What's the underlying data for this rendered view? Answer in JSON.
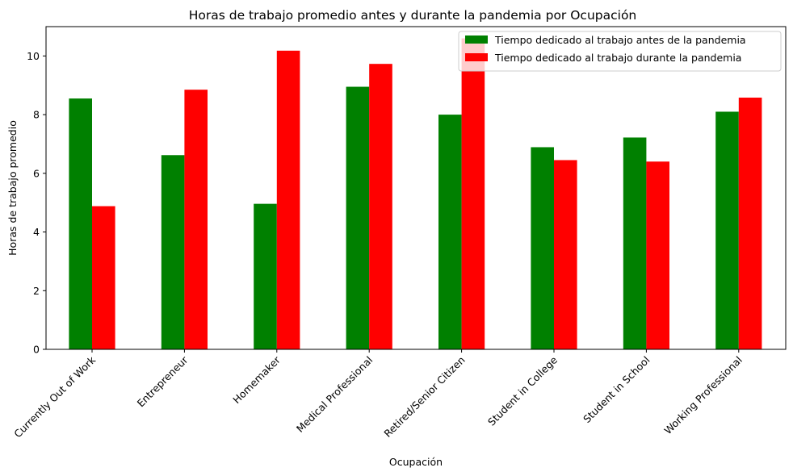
{
  "chart_data": {
    "type": "bar",
    "title": "Horas de trabajo promedio antes y durante la pandemia por Ocupación",
    "xlabel": "Ocupación",
    "ylabel": "Horas de trabajo promedio",
    "ylim": [
      0,
      11
    ],
    "yticks": [
      0,
      2,
      4,
      6,
      8,
      10
    ],
    "grid": false,
    "legend_position": "top-right",
    "categories": [
      "Currently Out of Work",
      "Entrepreneur",
      "Homemaker",
      "Medical Professional",
      "Retired/Senior Citizen",
      "Student in College",
      "Student in School",
      "Working Professional"
    ],
    "series": [
      {
        "name": "Tiempo dedicado al trabajo antes de la pandemia",
        "color": "#008000",
        "values": [
          8.55,
          6.62,
          4.96,
          8.95,
          8.0,
          6.89,
          7.22,
          8.1
        ]
      },
      {
        "name": "Tiempo dedicado al trabajo durante la pandemia",
        "color": "#ff0000",
        "values": [
          4.88,
          8.85,
          10.18,
          9.73,
          10.6,
          6.45,
          6.4,
          8.58
        ]
      }
    ]
  }
}
